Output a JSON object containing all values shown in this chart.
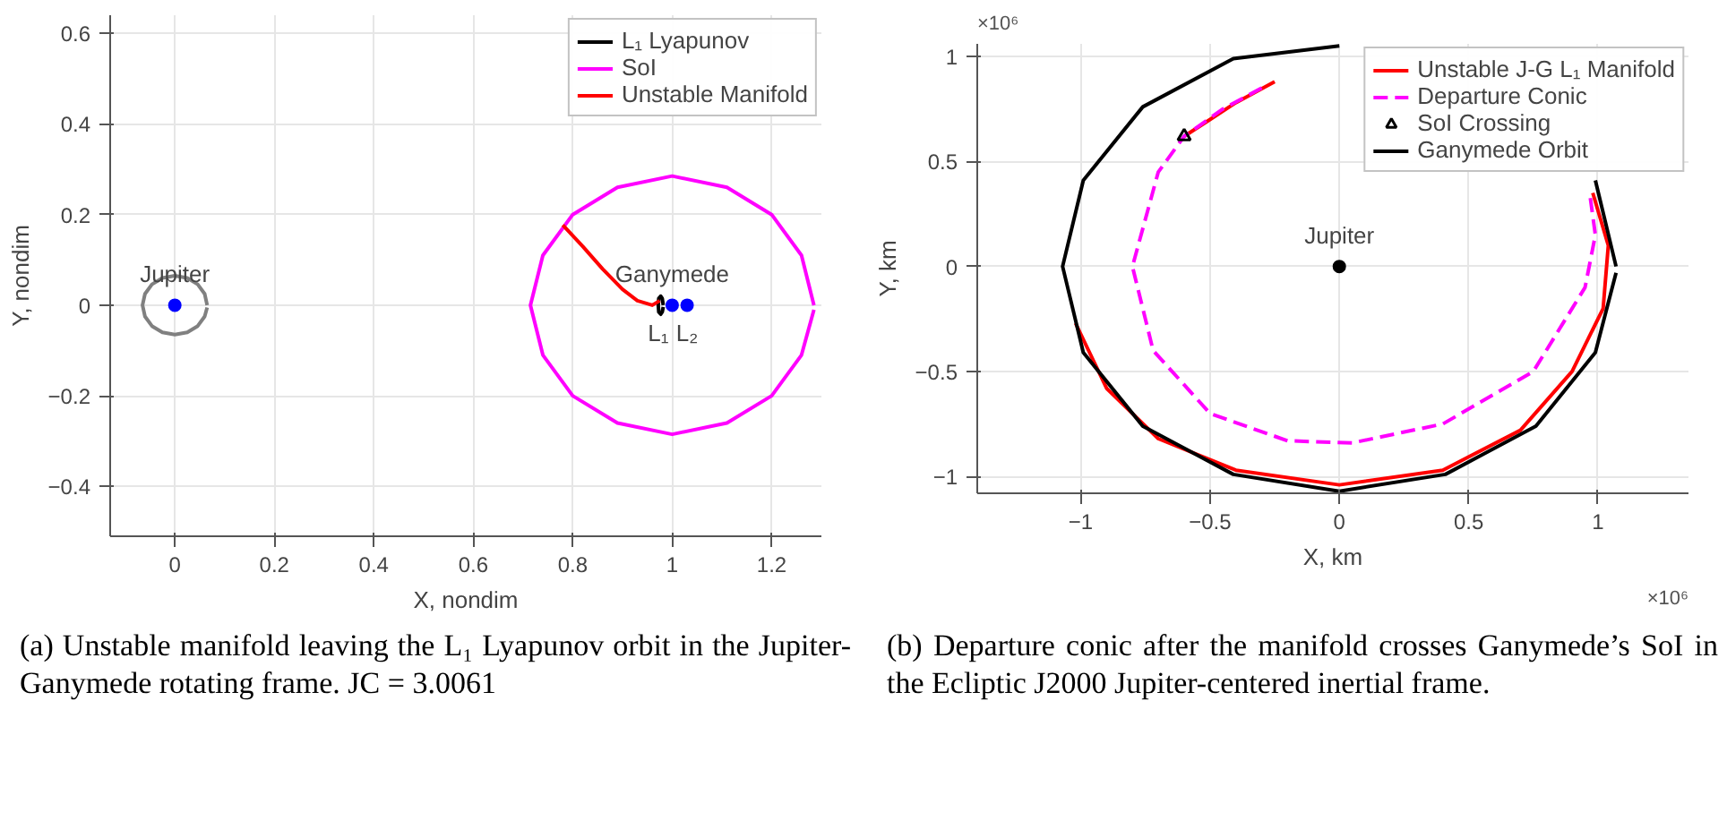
{
  "chart_data": [
    {
      "type": "line",
      "xlabel": "X, nondim",
      "ylabel": "Y, nondim",
      "xlim": [
        -0.13,
        1.3
      ],
      "ylim": [
        -0.51,
        0.64
      ],
      "xticks": [
        0,
        0.2,
        0.4,
        0.6,
        0.8,
        1,
        1.2
      ],
      "yticks": [
        -0.4,
        -0.2,
        0,
        0.2,
        0.4,
        0.6
      ],
      "grid": true,
      "legend": "top right",
      "series": [
        {
          "name": "L₁ Lyapunov",
          "color": "#000000",
          "x": [
            0.982,
            0.98,
            0.977,
            0.973,
            0.972,
            0.973,
            0.977,
            0.98,
            0.982
          ],
          "values": [
            0,
            0.015,
            0.02,
            0.015,
            0,
            -0.015,
            -0.02,
            -0.015,
            -0.004
          ]
        },
        {
          "name": "SoI",
          "color": "#ff00ff",
          "x": [
            1.285,
            1.26,
            1.2,
            1.11,
            1,
            0.89,
            0.8,
            0.74,
            0.715,
            0.74,
            0.8,
            0.89,
            1,
            1.11,
            1.2,
            1.26,
            1.285
          ],
          "values": [
            0,
            0.11,
            0.2,
            0.26,
            0.285,
            0.26,
            0.2,
            0.11,
            0,
            -0.11,
            -0.2,
            -0.26,
            -0.285,
            -0.26,
            -0.2,
            -0.11,
            -0.01
          ]
        },
        {
          "name": "Unstable Manifold",
          "color": "#ff0000",
          "x": [
            0.78,
            0.82,
            0.86,
            0.9,
            0.93,
            0.96,
            0.975
          ],
          "values": [
            0.177,
            0.13,
            0.08,
            0.035,
            0.01,
            0.0,
            0.01
          ]
        },
        {
          "color": "#808080",
          "x": [
            0.065,
            0.06,
            0.046,
            0.025,
            0,
            -0.025,
            -0.046,
            -0.06,
            -0.065,
            -0.06,
            -0.046,
            -0.025,
            0,
            0.025,
            0.046,
            0.06,
            0.065
          ],
          "values": [
            0,
            0.025,
            0.046,
            0.06,
            0.065,
            0.06,
            0.046,
            0.025,
            0,
            -0.025,
            -0.046,
            -0.06,
            -0.065,
            -0.06,
            -0.046,
            -0.025,
            -0.005
          ]
        },
        {
          "type": "scatter",
          "marker": "circle",
          "color": "#0000ff",
          "x": [
            0,
            1,
            1.03
          ],
          "values": [
            0,
            0,
            0
          ]
        }
      ],
      "annotations": [
        {
          "text": "Jupiter",
          "x": 0,
          "y": 0
        },
        {
          "text": "Ganymede",
          "x": 1,
          "y": 0
        },
        {
          "text": "L₁",
          "x": 0.972,
          "y": 0
        },
        {
          "text": "L₂",
          "x": 1.03,
          "y": 0
        },
        "(a) Unstable manifold leaving the L₁ Lyapunov orbit in the Jupiter-Ganymede rotating frame. JC = 3.0061"
      ]
    },
    {
      "type": "line",
      "xlabel": "X, km",
      "ylabel": "Y, km",
      "xlim": [
        -1.4,
        1.35
      ],
      "ylim": [
        -1.08,
        1.06
      ],
      "xticks": [
        -1,
        -0.5,
        0,
        0.5,
        1
      ],
      "yticks": [
        -1,
        -0.5,
        0,
        0.5,
        1
      ],
      "grid": true,
      "legend": "top right",
      "series": [
        {
          "name": "Unstable J-G L₁ Manifold",
          "color": "#ff0000",
          "x": [
            -1.02,
            -0.9,
            -0.7,
            -0.4,
            0,
            0.4,
            0.7,
            0.9,
            1.02,
            1.04,
            0.98,
            null,
            -0.25,
            -0.4,
            -0.5,
            -0.6
          ],
          "values": [
            -0.27,
            -0.58,
            -0.82,
            -0.97,
            -1.04,
            -0.97,
            -0.78,
            -0.5,
            -0.2,
            0.1,
            0.35,
            null,
            0.88,
            0.78,
            0.7,
            0.62
          ]
        },
        {
          "name": "Departure Conic",
          "line_style": "dashed",
          "color": "#ff00ff",
          "x": [
            -0.3,
            -0.45,
            -0.6,
            -0.7,
            -0.8,
            -0.72,
            -0.5,
            -0.2,
            0.05,
            0.4,
            0.75,
            0.95,
            0.99,
            0.97
          ],
          "values": [
            0.85,
            0.75,
            0.62,
            0.45,
            0.0,
            -0.4,
            -0.7,
            -0.83,
            -0.84,
            -0.75,
            -0.5,
            -0.1,
            0.15,
            0.33
          ]
        },
        {
          "name": "SoI Crossing",
          "type": "scatter",
          "marker": "triangle",
          "color": "#000000",
          "x": [
            -0.6
          ],
          "values": [
            0.62
          ]
        },
        {
          "name": "Ganymede Orbit",
          "color": "#000000",
          "x": [
            1.07,
            0.99,
            0.76,
            0.41,
            0,
            -0.41,
            -0.76,
            -0.99,
            -1.07,
            -0.99,
            -0.76,
            -0.41,
            0,
            0.41,
            0.76,
            0.99,
            1.07
          ],
          "values": [
            0,
            0.41,
            null,
            null,
            1.05,
            0.99,
            0.76,
            0.41,
            0,
            -0.41,
            -0.76,
            -0.99,
            -1.07,
            -0.99,
            -0.76,
            -0.41,
            -0.03
          ]
        },
        {
          "type": "scatter",
          "marker": "circle",
          "color": "#000000",
          "x": [
            0
          ],
          "values": [
            0
          ]
        }
      ],
      "annotations": [
        "×10⁶",
        "×10⁶",
        {
          "text": "Jupiter",
          "x": 0,
          "y": 0
        },
        "(b) Departure conic after the manifold crosses Ganymede’s SoI in the Ecliptic J2000 Jupiter-centered inertial frame."
      ]
    }
  ]
}
